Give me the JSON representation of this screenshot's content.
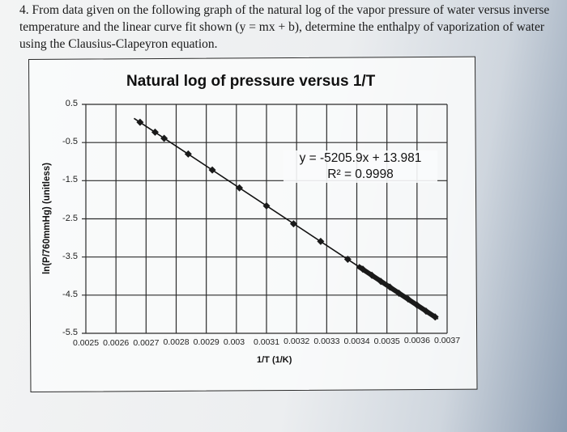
{
  "question": {
    "number": "4.",
    "text": "From data given on the following graph of the natural log of the vapor pressure of water versus inverse temperature and the linear curve fit shown (y = mx + b), determine the enthalpy of vaporization of water using the Clausius-Clapeyron equation."
  },
  "chart_data": {
    "type": "scatter",
    "title": "Natural log of pressure versus 1/T",
    "xlabel": "1/T (1/K)",
    "ylabel": "ln(P/760mmHg) (unitless)",
    "xlim": [
      0.0025,
      0.0037
    ],
    "ylim": [
      -5.5,
      0.5
    ],
    "x_ticks": [
      "0.0025",
      "0.0026",
      "0.0027",
      "0.0028",
      "0.0029",
      "0.003",
      "0.0031",
      "0.0032",
      "0.0033",
      "0.0034",
      "0.0035",
      "0.0036",
      "0.0037"
    ],
    "y_ticks": [
      "0.5",
      "-0.5",
      "-1.5",
      "-2.5",
      "-3.5",
      "-4.5",
      "-5.5"
    ],
    "grid": true,
    "legend": "none",
    "trendline": {
      "equation": "y = -5205.9x + 13.981",
      "r_squared": "R² = 0.9998",
      "slope": -5205.9,
      "intercept": 13.981
    },
    "series": [
      {
        "name": "ln(P/760mmHg)",
        "marker": "diamond",
        "x": [
          0.00268,
          0.00273,
          0.00276,
          0.00284,
          0.00292,
          0.00301,
          0.0031,
          0.00319,
          0.00328,
          0.00337,
          0.00342,
          0.00345,
          0.00348,
          0.00351,
          0.00354,
          0.00357,
          0.0036,
          0.00363,
          0.00366
        ],
        "y": [
          0.03,
          -0.23,
          -0.39,
          -0.8,
          -1.22,
          -1.69,
          -2.16,
          -2.63,
          -3.09,
          -3.56,
          -3.82,
          -3.98,
          -4.14,
          -4.29,
          -4.45,
          -4.6,
          -4.76,
          -4.92,
          -5.07
        ]
      }
    ]
  }
}
